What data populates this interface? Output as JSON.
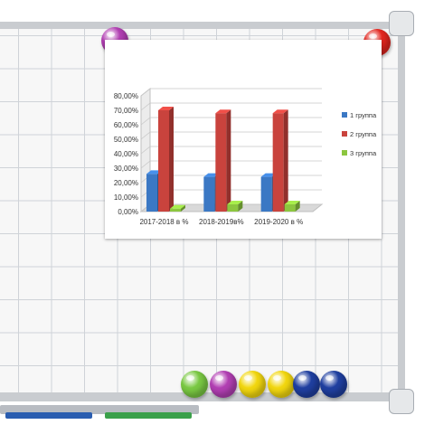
{
  "scene": {
    "magnet_colors": [
      "#b23fb3",
      "#e3261f",
      "#7ac943",
      "#b23fb3",
      "#f2d70f",
      "#f2d70f",
      "#1f3fa0",
      "#1f3fa0"
    ]
  },
  "chart_data": {
    "type": "bar",
    "categories": [
      "2017-2018 в %",
      "2018-2019в%",
      "2019-2020 в %"
    ],
    "series": [
      {
        "name": "1 группа",
        "values": [
          26,
          24,
          24
        ],
        "color": "#3b78c4"
      },
      {
        "name": "2 группа",
        "values": [
          70,
          68,
          68
        ],
        "color": "#c9433d"
      },
      {
        "name": "3 группа",
        "values": [
          2,
          5,
          5
        ],
        "color": "#8cc63f"
      }
    ],
    "yticks": [
      "0,00%",
      "10,00%",
      "20,00%",
      "30,00%",
      "40,00%",
      "50,00%",
      "60,00%",
      "70,00%",
      "80,00%"
    ],
    "ylim": [
      0,
      80
    ],
    "grid": true,
    "legend_position": "right",
    "style": "3d"
  }
}
